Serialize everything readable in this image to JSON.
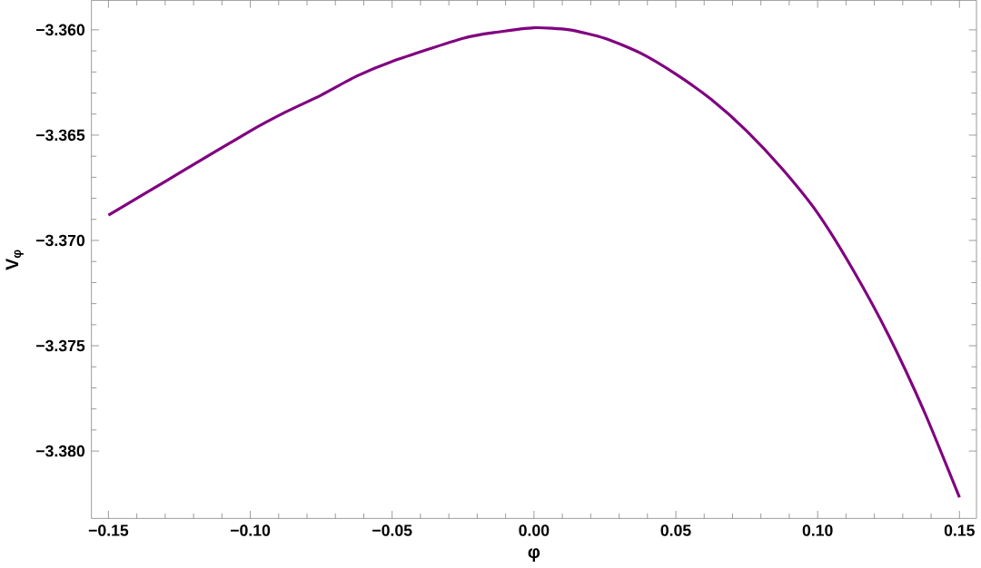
{
  "chart_data": {
    "type": "line",
    "xlabel": "φ",
    "ylabel": "V$_{φ}$",
    "xlim": [
      -0.156,
      0.156
    ],
    "ylim": [
      -3.3832,
      -3.3586
    ],
    "xticks": [
      {
        "value": -0.15,
        "label": "−0.15"
      },
      {
        "value": -0.1,
        "label": "−0.10"
      },
      {
        "value": -0.05,
        "label": "−0.05"
      },
      {
        "value": 0,
        "label": "0.00"
      },
      {
        "value": 0.05,
        "label": "0.05"
      },
      {
        "value": 0.1,
        "label": "0.10"
      },
      {
        "value": 0.15,
        "label": "0.15"
      }
    ],
    "yticks": [
      {
        "value": -3.38,
        "label": "−3.380"
      },
      {
        "value": -3.375,
        "label": "−3.375"
      },
      {
        "value": -3.37,
        "label": "−3.370"
      },
      {
        "value": -3.365,
        "label": "−3.365"
      },
      {
        "value": -3.36,
        "label": "−3.360"
      }
    ],
    "grid": false,
    "marker": "none",
    "line_style": "solid",
    "series": [
      {
        "color": "#800080",
        "x": [
          -0.15,
          -0.1375,
          -0.125,
          -0.1,
          -0.0875,
          -0.075,
          -0.0625,
          -0.05,
          -0.025,
          -0.0125,
          0,
          0.0125,
          0.025,
          0.0375,
          0.05,
          0.0625,
          0.075,
          0.0875,
          0.1,
          0.1125,
          0.125,
          0.1375,
          0.15
        ],
        "values": [
          -3.3688,
          -3.3678,
          -3.3668,
          -3.3648,
          -3.3639,
          -3.3631,
          -3.3622,
          -3.3615,
          -3.3604,
          -3.3601,
          -3.3599,
          -3.36,
          -3.3604,
          -3.3611,
          -3.3621,
          -3.3633,
          -3.3648,
          -3.3666,
          -3.3687,
          -3.3714,
          -3.3745,
          -3.3781,
          -3.3822
        ]
      }
    ]
  }
}
